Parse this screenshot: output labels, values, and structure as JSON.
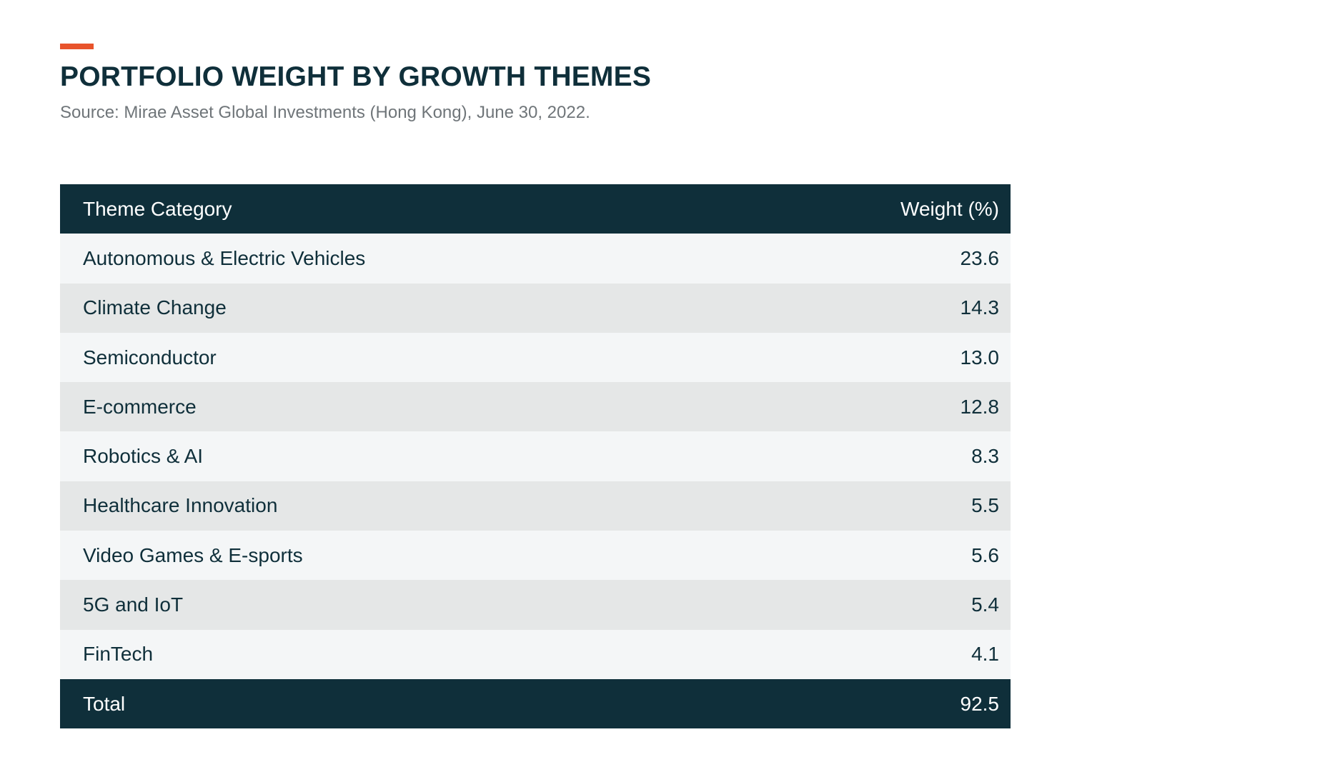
{
  "chart_data": {
    "type": "table",
    "title": "PORTFOLIO WEIGHT BY GROWTH THEMES",
    "subtitle": "Source: Mirae Asset Global Investments (Hong Kong), June 30, 2022.",
    "columns": [
      "Theme Category",
      "Weight (%)"
    ],
    "rows": [
      {
        "category": "Autonomous & Electric Vehicles",
        "weight": "23.6"
      },
      {
        "category": "Climate Change",
        "weight": "14.3"
      },
      {
        "category": "Semiconductor",
        "weight": "13.0"
      },
      {
        "category": "E-commerce",
        "weight": "12.8"
      },
      {
        "category": "Robotics & AI",
        "weight": "8.3"
      },
      {
        "category": "Healthcare Innovation",
        "weight": "5.5"
      },
      {
        "category": "Video Games & E-sports",
        "weight": "5.6"
      },
      {
        "category": "5G and IoT",
        "weight": "5.4"
      },
      {
        "category": "FinTech",
        "weight": "4.1"
      }
    ],
    "total": {
      "label": "Total",
      "weight": "92.5"
    }
  },
  "colors": {
    "accent": "#e8532b",
    "header_bg": "#0f2f3a",
    "row_light": "#f4f6f7",
    "row_dark": "#e5e7e7",
    "subtitle": "#6f7579"
  }
}
